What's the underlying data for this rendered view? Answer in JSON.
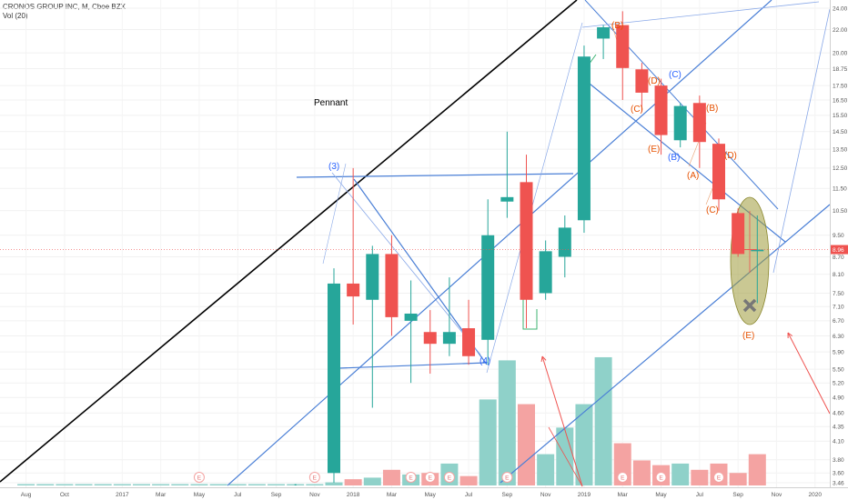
{
  "header": {
    "symbol": "CRONOS GROUP INC, M, Cboe BZX",
    "volume": "Vol (20)"
  },
  "colors": {
    "up": "#26a69a",
    "down": "#ef5350",
    "vol_up": "#8fd1c9",
    "vol_down": "#f4a3a2",
    "trendline": "#4a7fd6",
    "big_line": "#000000",
    "ellipse": "#9e9b3a",
    "price_tag": "#ef5350"
  },
  "chart_data": {
    "type": "candlestick",
    "title": "CRONOS GROUP INC, M, Cboe BZX",
    "x_axis_labels": [
      "Aug",
      "Oct",
      "2017",
      "Mar",
      "May",
      "Jul",
      "Sep",
      "Nov",
      "2018",
      "Mar",
      "May",
      "Jul",
      "Sep",
      "Nov",
      "2019",
      "Mar",
      "May",
      "Jul",
      "Sep",
      "Nov",
      "2020"
    ],
    "y_axis_labels": [
      "24.00",
      "22.00",
      "20.00",
      "18.75",
      "17.50",
      "16.50",
      "15.50",
      "14.50",
      "13.50",
      "12.50",
      "11.50",
      "10.50",
      "9.50",
      "8.70",
      "8.10",
      "7.50",
      "7.10",
      "6.70",
      "6.30",
      "5.90",
      "5.50",
      "5.20",
      "4.90",
      "4.60",
      "4.35",
      "4.10",
      "3.80",
      "3.60",
      "3.46"
    ],
    "last_price": "8.96",
    "candles": [
      {
        "m": "2017-12",
        "o": 3.6,
        "h": 8.3,
        "l": 3.46,
        "c": 7.8
      },
      {
        "m": "2018-01",
        "o": 7.8,
        "h": 12.5,
        "l": 6.6,
        "c": 7.4
      },
      {
        "m": "2018-02",
        "o": 7.3,
        "h": 9.1,
        "l": 4.7,
        "c": 8.8
      },
      {
        "m": "2018-03",
        "o": 8.8,
        "h": 9.5,
        "l": 6.3,
        "c": 6.8
      },
      {
        "m": "2018-04",
        "o": 6.7,
        "h": 7.9,
        "l": 5.2,
        "c": 6.9
      },
      {
        "m": "2018-05",
        "o": 6.4,
        "h": 7.0,
        "l": 5.4,
        "c": 6.1
      },
      {
        "m": "2018-06",
        "o": 6.1,
        "h": 8.0,
        "l": 5.8,
        "c": 6.4
      },
      {
        "m": "2018-07",
        "o": 6.5,
        "h": 7.3,
        "l": 5.6,
        "c": 5.8
      },
      {
        "m": "2018-08",
        "o": 6.2,
        "h": 11.0,
        "l": 5.6,
        "c": 9.5
      },
      {
        "m": "2018-09",
        "o": 10.9,
        "h": 14.5,
        "l": 10.2,
        "c": 11.1
      },
      {
        "m": "2018-10",
        "o": 11.8,
        "h": 13.2,
        "l": 6.5,
        "c": 7.3
      },
      {
        "m": "2018-11",
        "o": 7.5,
        "h": 9.3,
        "l": 7.3,
        "c": 8.9
      },
      {
        "m": "2018-12",
        "o": 8.7,
        "h": 10.3,
        "l": 8.0,
        "c": 9.8
      },
      {
        "m": "2019-01",
        "o": 10.1,
        "h": 20.6,
        "l": 9.6,
        "c": 19.7
      },
      {
        "m": "2019-02",
        "o": 21.2,
        "h": 22.4,
        "l": 19.5,
        "c": 22.2
      },
      {
        "m": "2019-03",
        "o": 22.4,
        "h": 23.7,
        "l": 16.5,
        "c": 18.8
      },
      {
        "m": "2019-04",
        "o": 18.7,
        "h": 19.2,
        "l": 15.7,
        "c": 17.0
      },
      {
        "m": "2019-05",
        "o": 17.5,
        "h": 18.0,
        "l": 13.2,
        "c": 14.3
      },
      {
        "m": "2019-06",
        "o": 14.0,
        "h": 16.3,
        "l": 13.6,
        "c": 16.1
      },
      {
        "m": "2019-07",
        "o": 16.3,
        "h": 16.8,
        "l": 12.5,
        "c": 13.9
      },
      {
        "m": "2019-08",
        "o": 13.8,
        "h": 14.1,
        "l": 10.5,
        "c": 11.0
      },
      {
        "m": "2019-09",
        "o": 10.4,
        "h": 10.6,
        "l": 8.7,
        "c": 8.8
      },
      {
        "m": "2019-10",
        "o": 8.9,
        "h": 10.3,
        "l": 7.2,
        "c": 8.96
      }
    ],
    "volume_bars": [
      {
        "m": "2017-12",
        "v": 0.02,
        "up": true
      },
      {
        "m": "2018-01",
        "v": 0.04,
        "up": false
      },
      {
        "m": "2018-02",
        "v": 0.05,
        "up": true
      },
      {
        "m": "2018-03",
        "v": 0.1,
        "up": false
      },
      {
        "m": "2018-04",
        "v": 0.07,
        "up": true
      },
      {
        "m": "2018-05",
        "v": 0.08,
        "up": false
      },
      {
        "m": "2018-06",
        "v": 0.14,
        "up": true
      },
      {
        "m": "2018-07",
        "v": 0.06,
        "up": false
      },
      {
        "m": "2018-08",
        "v": 0.55,
        "up": true
      },
      {
        "m": "2018-09",
        "v": 0.8,
        "up": true
      },
      {
        "m": "2018-10",
        "v": 0.52,
        "up": false
      },
      {
        "m": "2018-11",
        "v": 0.2,
        "up": true
      },
      {
        "m": "2018-12",
        "v": 0.37,
        "up": true
      },
      {
        "m": "2019-01",
        "v": 0.52,
        "up": true
      },
      {
        "m": "2019-02",
        "v": 0.82,
        "up": true
      },
      {
        "m": "2019-03",
        "v": 0.27,
        "up": false
      },
      {
        "m": "2019-04",
        "v": 0.16,
        "up": false
      },
      {
        "m": "2019-05",
        "v": 0.13,
        "up": false
      },
      {
        "m": "2019-06",
        "v": 0.14,
        "up": true
      },
      {
        "m": "2019-07",
        "v": 0.1,
        "up": false
      },
      {
        "m": "2019-08",
        "v": 0.14,
        "up": false
      },
      {
        "m": "2019-09",
        "v": 0.08,
        "up": false
      },
      {
        "m": "2019-10",
        "v": 0.2,
        "up": false
      }
    ]
  },
  "annotations": {
    "pennant": "Pennant",
    "wave_3": "(3)",
    "wave_4": "(4)",
    "labels_blue": [
      "(C)",
      "(B)"
    ],
    "labels_orange": [
      "(B)",
      "(C)",
      "(D)",
      "(E)",
      "(A)",
      "(B)",
      "(C)",
      "(D)",
      "(E)"
    ],
    "earnings_marker": "E"
  }
}
